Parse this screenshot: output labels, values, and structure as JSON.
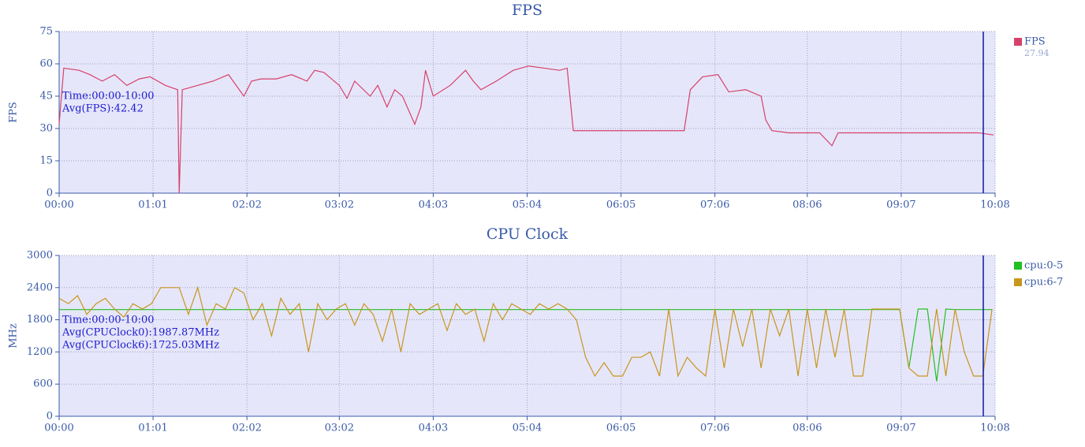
{
  "chart_data": [
    {
      "type": "line",
      "title": "FPS",
      "ylabel": "FPS",
      "annotations": [
        "Time:00:00-10:00",
        "Avg(FPS):42.42"
      ],
      "x": [
        0,
        3,
        13,
        20,
        28,
        36,
        44,
        52,
        59,
        69,
        77,
        78,
        80,
        90,
        100,
        110,
        120,
        125,
        131,
        141,
        151,
        161,
        166,
        172,
        182,
        187,
        192,
        202,
        207,
        213,
        218,
        223,
        231,
        235,
        238,
        243,
        254,
        264,
        269,
        274,
        284,
        295,
        305,
        315,
        325,
        330,
        334,
        351,
        371,
        392,
        406,
        410,
        418,
        428,
        435,
        446,
        456,
        459,
        463,
        474,
        494,
        502,
        506,
        515,
        535,
        556,
        576,
        597,
        607
      ],
      "series": [
        {
          "name": "FPS",
          "color": "#d6416a",
          "current": 27.94,
          "values": [
            32,
            58,
            57,
            55,
            52,
            55,
            50,
            53,
            54,
            50,
            48,
            0,
            48,
            50,
            52,
            55,
            45,
            52,
            53,
            53,
            55,
            52,
            57,
            56,
            50,
            44,
            52,
            45,
            50,
            40,
            48,
            45,
            32,
            40,
            57,
            45,
            50,
            57,
            52,
            48,
            52,
            57,
            59,
            58,
            57,
            58,
            29,
            29,
            29,
            29,
            29,
            48,
            54,
            55,
            47,
            48,
            45,
            34,
            29,
            28,
            28,
            22,
            28,
            28,
            28,
            28,
            28,
            28,
            27
          ]
        }
      ],
      "xlim": [
        0,
        608
      ],
      "ylim": [
        0,
        75
      ],
      "xticks": [
        {
          "value": 0,
          "label": "00:00"
        },
        {
          "value": 61,
          "label": "01:01"
        },
        {
          "value": 122,
          "label": "02:02"
        },
        {
          "value": 182,
          "label": "03:02"
        },
        {
          "value": 243,
          "label": "04:03"
        },
        {
          "value": 304,
          "label": "05:04"
        },
        {
          "value": 365,
          "label": "06:05"
        },
        {
          "value": 426,
          "label": "07:06"
        },
        {
          "value": 486,
          "label": "08:06"
        },
        {
          "value": 547,
          "label": "09:07"
        },
        {
          "value": 608,
          "label": "10:08"
        }
      ],
      "yticks": [
        0,
        15,
        30,
        45,
        60,
        75
      ],
      "grid": true,
      "legend": "right"
    },
    {
      "type": "line",
      "title": "CPU Clock",
      "ylabel": "MHz",
      "annotations": [
        "Time:00:00-10:00",
        "Avg(CPUClock0):1987.87MHz",
        "Avg(CPUClock6):1725.03MHz"
      ],
      "x": [
        0,
        6,
        12,
        18,
        24,
        30,
        36,
        42,
        48,
        54,
        60,
        66,
        72,
        78,
        84,
        90,
        96,
        102,
        108,
        114,
        120,
        126,
        132,
        138,
        144,
        150,
        156,
        162,
        168,
        174,
        180,
        186,
        192,
        198,
        204,
        210,
        216,
        222,
        228,
        234,
        240,
        246,
        252,
        258,
        264,
        270,
        276,
        282,
        288,
        294,
        300,
        306,
        312,
        318,
        324,
        330,
        336,
        342,
        348,
        354,
        360,
        366,
        372,
        378,
        384,
        390,
        396,
        402,
        408,
        414,
        420,
        426,
        432,
        438,
        444,
        450,
        456,
        462,
        468,
        474,
        480,
        486,
        492,
        498,
        504,
        510,
        516,
        522,
        528,
        534,
        540,
        546,
        552,
        558,
        564,
        570,
        576,
        582,
        588,
        594,
        600,
        606
      ],
      "series": [
        {
          "name": "cpu:0-5",
          "color": "#22c022",
          "values": [
            1990,
            1990,
            1990,
            1990,
            1990,
            1990,
            1990,
            1990,
            1990,
            1990,
            1990,
            1990,
            1990,
            1990,
            1990,
            1990,
            1990,
            1990,
            1990,
            1990,
            1990,
            1990,
            1990,
            1990,
            1990,
            1990,
            1990,
            1990,
            1990,
            1990,
            1990,
            1990,
            1990,
            1990,
            1990,
            1990,
            1990,
            1990,
            1990,
            1990,
            1990,
            1990,
            1990,
            1990,
            1990,
            1990,
            1990,
            1990,
            1990,
            1990,
            1990,
            1990,
            1990,
            1990,
            1990,
            1990,
            1990,
            1990,
            1990,
            1990,
            1990,
            1990,
            1990,
            1990,
            1990,
            1990,
            1990,
            1990,
            1990,
            1990,
            1990,
            1990,
            1990,
            1990,
            1990,
            1990,
            1990,
            1990,
            1990,
            1990,
            1990,
            1990,
            1990,
            1990,
            1990,
            1990,
            1990,
            1990,
            1990,
            1990,
            1990,
            1990,
            900,
            2000,
            2000,
            650,
            2000,
            1990,
            1990,
            1990,
            1990,
            1990
          ]
        },
        {
          "name": "cpu:6-7",
          "color": "#c8961e",
          "values": [
            2200,
            2100,
            2250,
            1900,
            2100,
            2200,
            2000,
            1850,
            2100,
            2000,
            2100,
            2400,
            2400,
            2400,
            1900,
            2400,
            1700,
            2100,
            2000,
            2400,
            2300,
            1800,
            2100,
            1500,
            2200,
            1900,
            2100,
            1200,
            2100,
            1800,
            2000,
            2100,
            1700,
            2100,
            1900,
            1400,
            2000,
            1200,
            2100,
            1900,
            2000,
            2100,
            1600,
            2100,
            1900,
            2000,
            1400,
            2100,
            1800,
            2100,
            2000,
            1900,
            2100,
            2000,
            2100,
            2000,
            1800,
            1100,
            750,
            1000,
            750,
            750,
            1100,
            1100,
            1200,
            750,
            2000,
            750,
            1100,
            900,
            750,
            2000,
            900,
            2000,
            1300,
            2000,
            900,
            2000,
            1500,
            2000,
            750,
            2000,
            900,
            2000,
            1100,
            2000,
            750,
            750,
            2000,
            2000,
            2000,
            2000,
            900,
            750,
            750,
            2000,
            750,
            2000,
            1200,
            750,
            750,
            2000
          ]
        }
      ],
      "xlim": [
        0,
        608
      ],
      "ylim": [
        0,
        3000
      ],
      "xticks": [
        {
          "value": 0,
          "label": "00:00"
        },
        {
          "value": 61,
          "label": "01:01"
        },
        {
          "value": 122,
          "label": "02:02"
        },
        {
          "value": 182,
          "label": "03:02"
        },
        {
          "value": 243,
          "label": "04:03"
        },
        {
          "value": 304,
          "label": "05:04"
        },
        {
          "value": 365,
          "label": "06:05"
        },
        {
          "value": 426,
          "label": "07:06"
        },
        {
          "value": 486,
          "label": "08:06"
        },
        {
          "value": 547,
          "label": "09:07"
        },
        {
          "value": 608,
          "label": "10:08"
        }
      ],
      "yticks": [
        0,
        600,
        1200,
        1800,
        2400,
        3000
      ],
      "grid": true,
      "legend": "right"
    }
  ]
}
